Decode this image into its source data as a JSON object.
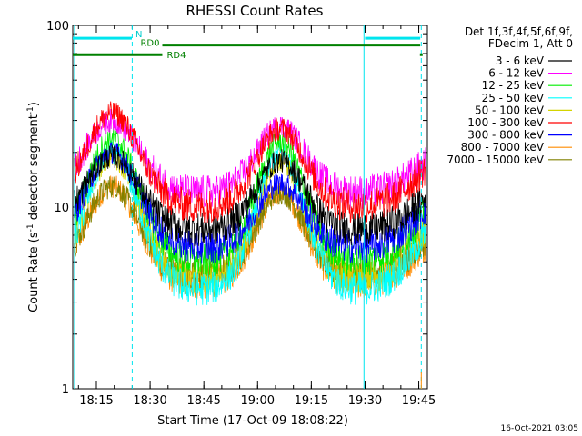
{
  "chart_data": {
    "type": "line",
    "title": "RHESSI Count Rates",
    "xlabel": "Start Time (17-Oct-09 18:08:22)",
    "ylabel_main": "Count Rate (s",
    "ylabel_sup1": "-1",
    "ylabel_mid": " detector segment",
    "ylabel_sup2": "-1",
    "ylabel_end": ")",
    "yscale": "log",
    "ylim": [
      1,
      100
    ],
    "xlim_minutes": [
      0,
      99
    ],
    "y_ticks": [
      {
        "value": 1,
        "label": "1"
      },
      {
        "value": 10,
        "label": "10"
      },
      {
        "value": 100,
        "label": "100"
      }
    ],
    "x_ticks": [
      {
        "minutes": 6.6,
        "label": "18:15"
      },
      {
        "minutes": 21.6,
        "label": "18:30"
      },
      {
        "minutes": 36.6,
        "label": "18:45"
      },
      {
        "minutes": 51.6,
        "label": "19:00"
      },
      {
        "minutes": 66.6,
        "label": "19:15"
      },
      {
        "minutes": 81.6,
        "label": "19:30"
      },
      {
        "minutes": 96.6,
        "label": "19:45"
      }
    ],
    "legend_header": [
      "Det 1f,3f,4f,5f,6f,9f,",
      "FDecim 1, Att 0"
    ],
    "series": [
      {
        "name": "3 - 6 keV",
        "color": "#000000",
        "p1": 19,
        "p2": 18,
        "floor": 7.5
      },
      {
        "name": "6 - 12 keV",
        "color": "#ff00ff",
        "p1": 30,
        "p2": 28,
        "floor": 12
      },
      {
        "name": "12 - 25 keV",
        "color": "#00ee00",
        "p1": 24,
        "p2": 23,
        "floor": 5
      },
      {
        "name": "25 - 50 keV",
        "color": "#00ffff",
        "p1": 20,
        "p2": 20,
        "floor": 3.5
      },
      {
        "name": "50 - 100 keV",
        "color": "#d4d400",
        "p1": 19,
        "p2": 18,
        "floor": 4
      },
      {
        "name": "100 - 300 keV",
        "color": "#ff0000",
        "p1": 33,
        "p2": 27,
        "floor": 10
      },
      {
        "name": "300 - 800 keV",
        "color": "#0000ff",
        "p1": 20,
        "p2": 13.5,
        "floor": 6
      },
      {
        "name": "800 - 7000 keV",
        "color": "#ff8c00",
        "p1": 13,
        "p2": 12,
        "floor": 3.8
      },
      {
        "name": "7000 - 15000 keV",
        "color": "#808000",
        "p1": 13,
        "p2": 12,
        "floor": 4.2
      }
    ],
    "peaks_minutes": [
      11,
      58
    ],
    "annotations": {
      "night_bars": [
        {
          "label": "N",
          "start": 0,
          "end": 16.5,
          "y": 85
        },
        {
          "label": "",
          "start": 81.6,
          "end": 97,
          "y": 85
        }
      ],
      "rd0": {
        "label": "RD0",
        "start": 25,
        "end": 97,
        "y": 78
      },
      "rd4": {
        "label": "RD4",
        "start": 0,
        "end": 25,
        "y": 69
      },
      "vlines_solid": [
        0.5,
        81.3
      ],
      "vlines_dashed": [
        16.6,
        97.3
      ],
      "orange_tick": 97.3,
      "green_dot": {
        "minutes": 97.3,
        "y": 69
      }
    }
  },
  "footer_timestamp": "16-Oct-2021 03:05"
}
